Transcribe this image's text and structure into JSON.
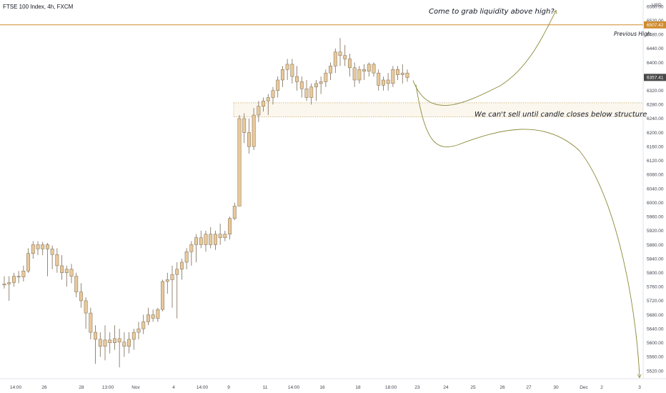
{
  "header": {
    "title": "FTSE 100 Index, 4h, FXCM"
  },
  "colors": {
    "candle_fill": "#e8c99a",
    "candle_outline": "#7a6a55",
    "level_line": "#cf8b2e",
    "zone": "#c8a86a",
    "projection": "#8d8a3a",
    "price_tag": "#4a4a4a"
  },
  "chart_data": {
    "type": "candlestick",
    "y_unit": "USD",
    "ylim": [
      5500,
      6575
    ],
    "yticks": [
      "6560.00",
      "6520.00",
      "6480.00",
      "6440.00",
      "6400.00",
      "6360.00",
      "6320.00",
      "6280.00",
      "6240.00",
      "6200.00",
      "6160.00",
      "6120.00",
      "6080.00",
      "6040.00",
      "6000.00",
      "5960.00",
      "5920.00",
      "5880.00",
      "5840.00",
      "5800.00",
      "5760.00",
      "5720.00",
      "5680.00",
      "5640.00",
      "5600.00",
      "5560.00",
      "5520.00"
    ],
    "x_labels": [
      "14:00",
      "26",
      "28",
      "13:00",
      "Nov",
      "4",
      "14:00",
      "9",
      "11",
      "14:00",
      "16",
      "18",
      "18:00",
      "23",
      "24",
      "25",
      "26",
      "27",
      "30",
      "Dec",
      "2",
      "3"
    ],
    "candles": [
      [
        5765,
        5790,
        5755,
        5768
      ],
      [
        5768,
        5790,
        5720,
        5772
      ],
      [
        5772,
        5800,
        5760,
        5790
      ],
      [
        5790,
        5805,
        5770,
        5788
      ],
      [
        5788,
        5820,
        5775,
        5805
      ],
      [
        5805,
        5870,
        5800,
        5855
      ],
      [
        5855,
        5890,
        5840,
        5880
      ],
      [
        5880,
        5890,
        5850,
        5868
      ],
      [
        5868,
        5888,
        5850,
        5880
      ],
      [
        5880,
        5885,
        5790,
        5868
      ],
      [
        5868,
        5878,
        5810,
        5852
      ],
      [
        5852,
        5870,
        5800,
        5820
      ],
      [
        5820,
        5850,
        5780,
        5800
      ],
      [
        5800,
        5820,
        5760,
        5810
      ],
      [
        5810,
        5825,
        5770,
        5790
      ],
      [
        5790,
        5800,
        5730,
        5745
      ],
      [
        5745,
        5770,
        5700,
        5720
      ],
      [
        5720,
        5730,
        5640,
        5685
      ],
      [
        5685,
        5700,
        5610,
        5630
      ],
      [
        5630,
        5650,
        5540,
        5610
      ],
      [
        5610,
        5630,
        5560,
        5590
      ],
      [
        5590,
        5650,
        5550,
        5608
      ],
      [
        5608,
        5630,
        5570,
        5600
      ],
      [
        5600,
        5650,
        5580,
        5612
      ],
      [
        5612,
        5640,
        5530,
        5602
      ],
      [
        5602,
        5630,
        5560,
        5590
      ],
      [
        5590,
        5630,
        5570,
        5610
      ],
      [
        5610,
        5640,
        5580,
        5630
      ],
      [
        5630,
        5660,
        5610,
        5640
      ],
      [
        5640,
        5680,
        5625,
        5660
      ],
      [
        5660,
        5700,
        5650,
        5680
      ],
      [
        5680,
        5695,
        5660,
        5670
      ],
      [
        5670,
        5700,
        5660,
        5695
      ],
      [
        5695,
        5780,
        5690,
        5775
      ],
      [
        5775,
        5800,
        5740,
        5780
      ],
      [
        5780,
        5820,
        5700,
        5795
      ],
      [
        5795,
        5830,
        5670,
        5810
      ],
      [
        5810,
        5840,
        5780,
        5830
      ],
      [
        5830,
        5870,
        5810,
        5860
      ],
      [
        5860,
        5890,
        5820,
        5880
      ],
      [
        5880,
        5910,
        5830,
        5900
      ],
      [
        5900,
        5920,
        5870,
        5880
      ],
      [
        5880,
        5920,
        5860,
        5910
      ],
      [
        5910,
        5930,
        5870,
        5880
      ],
      [
        5880,
        5920,
        5865,
        5910
      ],
      [
        5910,
        5940,
        5880,
        5900
      ],
      [
        5900,
        5920,
        5890,
        5910
      ],
      [
        5910,
        5960,
        5895,
        5955
      ],
      [
        5955,
        6000,
        5950,
        5990
      ],
      [
        5990,
        6250,
        5990,
        6240
      ],
      [
        6240,
        6255,
        6170,
        6200
      ],
      [
        6200,
        6240,
        6140,
        6160
      ],
      [
        6160,
        6270,
        6150,
        6250
      ],
      [
        6250,
        6290,
        6230,
        6275
      ],
      [
        6275,
        6300,
        6260,
        6290
      ],
      [
        6290,
        6310,
        6250,
        6300
      ],
      [
        6300,
        6330,
        6280,
        6320
      ],
      [
        6320,
        6360,
        6300,
        6350
      ],
      [
        6350,
        6390,
        6330,
        6380
      ],
      [
        6380,
        6410,
        6350,
        6395
      ],
      [
        6395,
        6410,
        6340,
        6360
      ],
      [
        6360,
        6390,
        6320,
        6345
      ],
      [
        6345,
        6360,
        6300,
        6325
      ],
      [
        6325,
        6350,
        6290,
        6300
      ],
      [
        6300,
        6340,
        6280,
        6330
      ],
      [
        6330,
        6350,
        6290,
        6340
      ],
      [
        6340,
        6360,
        6310,
        6345
      ],
      [
        6345,
        6380,
        6330,
        6370
      ],
      [
        6370,
        6400,
        6350,
        6390
      ],
      [
        6390,
        6440,
        6370,
        6430
      ],
      [
        6430,
        6470,
        6390,
        6420
      ],
      [
        6420,
        6450,
        6390,
        6410
      ],
      [
        6410,
        6425,
        6360,
        6385
      ],
      [
        6385,
        6400,
        6330,
        6350
      ],
      [
        6350,
        6390,
        6340,
        6380
      ],
      [
        6380,
        6395,
        6350,
        6375
      ],
      [
        6375,
        6400,
        6360,
        6395
      ],
      [
        6395,
        6400,
        6360,
        6370
      ],
      [
        6370,
        6380,
        6320,
        6335
      ],
      [
        6335,
        6360,
        6320,
        6350
      ],
      [
        6350,
        6370,
        6320,
        6340
      ],
      [
        6340,
        6390,
        6330,
        6380
      ],
      [
        6380,
        6390,
        6350,
        6365
      ],
      [
        6365,
        6395,
        6340,
        6370
      ],
      [
        6370,
        6380,
        6345,
        6357
      ]
    ],
    "levels": [
      {
        "name": "Previous High",
        "value": 6507.42
      }
    ],
    "structure_zone": {
      "top": 6285,
      "bottom": 6245
    },
    "price_tags": [
      {
        "value": 6507.42,
        "label": "6507.42"
      },
      {
        "value": 6357.41,
        "label": "6357.41"
      }
    ],
    "annotations": [
      "Come to grab liquidity above high?",
      "We can't sell until candle closes below structure",
      "Previous High"
    ]
  }
}
